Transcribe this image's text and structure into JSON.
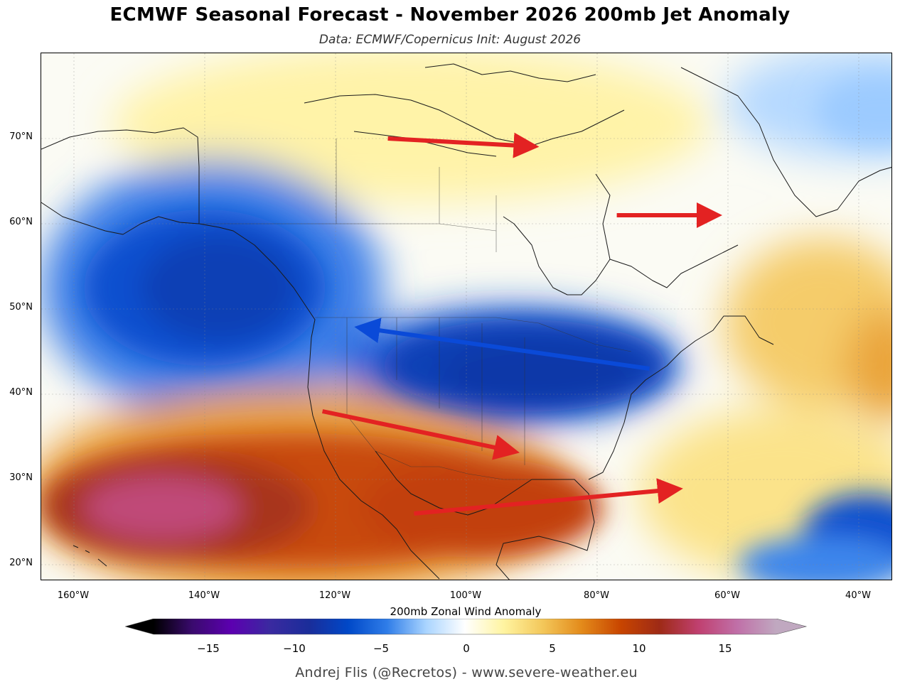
{
  "title": "ECMWF Seasonal Forecast - November 2026 200mb Jet Anomaly",
  "subtitle": "Data: ECMWF/Copernicus  Init: August 2026",
  "lat_labels": [
    "70°N",
    "60°N",
    "50°N",
    "40°N",
    "30°N",
    "20°N"
  ],
  "lon_labels": [
    "160°W",
    "140°W",
    "120°W",
    "100°W",
    "80°W",
    "60°W",
    "40°W"
  ],
  "colorbar": {
    "label": "200mb Zonal Wind Anomaly",
    "ticks": [
      "−15",
      "−10",
      "−5",
      "0",
      "5",
      "10",
      "15"
    ],
    "range": [
      -18,
      18
    ],
    "colors": [
      "#000000",
      "#3a0a6e",
      "#5c00b0",
      "#3a2aa0",
      "#1a2d9a",
      "#0048c8",
      "#2f7de8",
      "#a9d4ff",
      "#ffffff",
      "#fff4a0",
      "#f3c75a",
      "#e38a1a",
      "#c84500",
      "#9e2a16",
      "#c04070",
      "#c070a8",
      "#c0a8c0"
    ]
  },
  "arrows": [
    {
      "name": "arrow-arctic-canada",
      "color": "#e32222",
      "from": "112°W 70°N",
      "to": "88°W 69°N"
    },
    {
      "name": "arrow-hudson-labrador",
      "color": "#e32222",
      "from": "77°W 61°N",
      "to": "60°W 61°N"
    },
    {
      "name": "arrow-retrograde-north-us",
      "color": "#0a4ad8",
      "from": "72°W 43°N",
      "to": "118°W 48°N"
    },
    {
      "name": "arrow-southwest-jet",
      "color": "#e32222",
      "from": "122°W 38°N",
      "to": "91°W 33°N"
    },
    {
      "name": "arrow-subtropical-jet",
      "color": "#e32222",
      "from": "108°W 26°N",
      "to": "66°W 29°N"
    }
  ],
  "credit": "Andrej Flis (@Recretos) - www.severe-weather.eu"
}
